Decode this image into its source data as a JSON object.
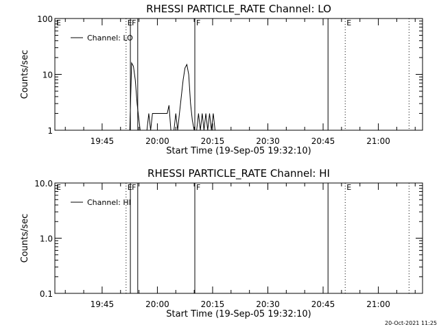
{
  "chart_data": [
    {
      "type": "line",
      "title": "RHESSI PARTICLE_RATE Channel: LO",
      "xlabel": "Start Time (19-Sep-05 19:32:10)",
      "ylabel": "Counts/sec",
      "y_scale": "log",
      "ylim": [
        1,
        100
      ],
      "yticks": [
        "1",
        "10",
        "100"
      ],
      "xlim": [
        "19:32:10",
        "21:12:00"
      ],
      "xticks": [
        "19:45",
        "20:00",
        "20:15",
        "20:30",
        "20:45",
        "21:00"
      ],
      "legend": {
        "placement": "top-left",
        "entries": [
          "Channel: LO"
        ]
      },
      "grid": false,
      "event_markers": [
        {
          "label": "E",
          "time": "19:32:10",
          "style": "dotted"
        },
        {
          "label": "E",
          "time": "19:51:30",
          "style": "dotted"
        },
        {
          "label": "F",
          "time": "19:52:40",
          "style": "solid"
        },
        {
          "label": "",
          "time": "19:54:40",
          "style": "solid"
        },
        {
          "label": "F",
          "time": "20:10:10",
          "style": "solid"
        },
        {
          "label": "",
          "time": "20:46:20",
          "style": "solid"
        },
        {
          "label": "E",
          "time": "20:51:00",
          "style": "dotted"
        },
        {
          "label": "",
          "time": "21:08:20",
          "style": "dotted"
        }
      ],
      "series": [
        {
          "name": "Channel: LO",
          "x": [
            "19:52:30",
            "19:53:00",
            "19:53:30",
            "19:54:00",
            "19:54:30",
            "19:55:00",
            "19:55:20",
            "19:57:10",
            "19:57:40",
            "19:58:10",
            "19:58:40",
            "19:59:10",
            "19:59:40",
            "20:00:10",
            "20:00:40",
            "20:01:10",
            "20:01:40",
            "20:02:10",
            "20:02:40",
            "20:03:10",
            "20:03:40",
            "20:04:30",
            "20:05:00",
            "20:05:30",
            "20:06:00",
            "20:06:30",
            "20:07:00",
            "20:07:30",
            "20:08:00",
            "20:08:30",
            "20:09:00",
            "20:09:30",
            "20:10:00",
            "20:10:40",
            "20:11:10",
            "20:11:40",
            "20:12:10",
            "20:12:40",
            "20:13:10",
            "20:13:40",
            "20:14:10",
            "20:14:40",
            "20:15:10",
            "20:15:40",
            "20:16:10"
          ],
          "y": [
            1,
            16,
            14,
            8,
            3,
            1.5,
            1,
            1,
            2,
            1,
            2,
            2,
            2,
            2,
            2,
            2,
            2,
            2,
            2,
            2.8,
            1,
            1,
            2,
            1,
            2,
            4,
            8,
            13,
            15,
            10,
            3,
            1.5,
            1,
            1,
            2,
            1,
            2,
            1,
            2,
            1,
            2,
            1,
            2,
            1,
            1
          ]
        }
      ]
    },
    {
      "type": "line",
      "title": "RHESSI PARTICLE_RATE Channel: HI",
      "xlabel": "Start Time (19-Sep-05 19:32:10)",
      "ylabel": "Counts/sec",
      "y_scale": "log",
      "ylim": [
        0.1,
        10
      ],
      "yticks": [
        "0.1",
        "1.0",
        "10.0"
      ],
      "xlim": [
        "19:32:10",
        "21:12:00"
      ],
      "xticks": [
        "19:45",
        "20:00",
        "20:15",
        "20:30",
        "20:45",
        "21:00"
      ],
      "legend": {
        "placement": "top-left",
        "entries": [
          "Channel: HI"
        ]
      },
      "grid": false,
      "event_markers": [
        {
          "label": "E",
          "time": "19:32:10",
          "style": "dotted"
        },
        {
          "label": "E",
          "time": "19:51:30",
          "style": "dotted"
        },
        {
          "label": "F",
          "time": "19:52:40",
          "style": "solid"
        },
        {
          "label": "",
          "time": "19:54:40",
          "style": "solid"
        },
        {
          "label": "F",
          "time": "20:10:10",
          "style": "solid"
        },
        {
          "label": "",
          "time": "20:46:20",
          "style": "solid"
        },
        {
          "label": "E",
          "time": "20:51:00",
          "style": "dotted"
        },
        {
          "label": "",
          "time": "21:08:20",
          "style": "dotted"
        }
      ],
      "series": [
        {
          "name": "Channel: HI",
          "x": [],
          "y": []
        }
      ]
    }
  ],
  "footer": {
    "timestamp": "20-Oct-2021 11:25"
  }
}
